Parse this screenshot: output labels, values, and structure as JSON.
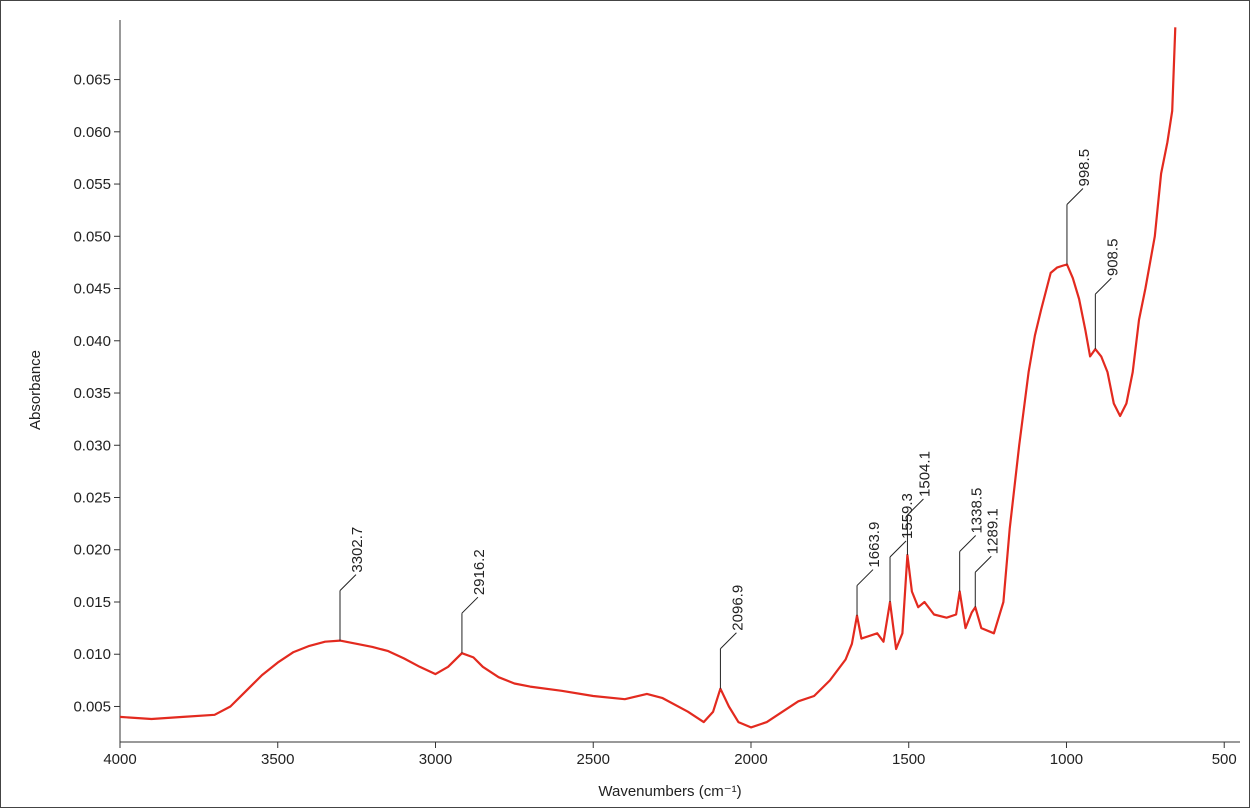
{
  "chart_data": {
    "type": "line",
    "xlabel": "Wavenumbers (cm⁻¹)",
    "ylabel": "Absorbance",
    "color": "#e32a1f",
    "xlim": [
      4000,
      450
    ],
    "ylim": [
      0.0016,
      0.0707
    ],
    "xticks": [
      4000,
      3500,
      3000,
      2500,
      2000,
      1500,
      1000,
      500
    ],
    "yticks": [
      0.005,
      {
        "value": 0.01,
        "label": "0.010"
      },
      0.015,
      {
        "value": 0.02,
        "label": "0.020"
      },
      0.025,
      {
        "value": 0.03,
        "label": "0.030"
      },
      0.035,
      {
        "value": 0.04,
        "label": "0.040"
      },
      0.045,
      {
        "value": 0.05,
        "label": "0.050"
      },
      0.055,
      {
        "value": 0.06,
        "label": "0.060"
      },
      0.065
    ],
    "x": [
      4000,
      3900,
      3800,
      3700,
      3650,
      3600,
      3550,
      3500,
      3450,
      3400,
      3350,
      3302.7,
      3250,
      3200,
      3150,
      3100,
      3050,
      3000,
      2960,
      2916.2,
      2880,
      2850,
      2800,
      2750,
      2700,
      2600,
      2500,
      2400,
      2330,
      2280,
      2200,
      2150,
      2120,
      2096.9,
      2070,
      2040,
      2000,
      1950,
      1900,
      1850,
      1800,
      1750,
      1700,
      1680,
      1663.9,
      1650,
      1600,
      1580,
      1559.3,
      1540,
      1520,
      1504.1,
      1490,
      1470,
      1450,
      1420,
      1380,
      1350,
      1338.5,
      1320,
      1300,
      1289.1,
      1270,
      1230,
      1200,
      1180,
      1150,
      1120,
      1100,
      1080,
      1050,
      1030,
      1010,
      998.5,
      980,
      960,
      940,
      925,
      908.5,
      890,
      870,
      850,
      830,
      810,
      790,
      770,
      750,
      720,
      700,
      680,
      665,
      655
    ],
    "values": [
      0.004,
      0.0038,
      0.004,
      0.0042,
      0.005,
      0.0065,
      0.008,
      0.0092,
      0.0102,
      0.0108,
      0.0112,
      0.0113,
      0.011,
      0.0107,
      0.0103,
      0.0096,
      0.0088,
      0.0081,
      0.0088,
      0.0101,
      0.0097,
      0.0088,
      0.0078,
      0.0072,
      0.0069,
      0.0065,
      0.006,
      0.0057,
      0.0062,
      0.0058,
      0.0045,
      0.0035,
      0.0045,
      0.0067,
      0.005,
      0.0035,
      0.003,
      0.0035,
      0.0045,
      0.0055,
      0.006,
      0.0075,
      0.0095,
      0.011,
      0.0137,
      0.0115,
      0.012,
      0.0112,
      0.015,
      0.0105,
      0.012,
      0.0195,
      0.016,
      0.0145,
      0.015,
      0.0138,
      0.0135,
      0.0138,
      0.016,
      0.0125,
      0.014,
      0.0145,
      0.0125,
      0.012,
      0.015,
      0.022,
      0.03,
      0.037,
      0.0405,
      0.043,
      0.0465,
      0.047,
      0.0472,
      0.0473,
      0.046,
      0.044,
      0.041,
      0.0385,
      0.0392,
      0.0385,
      0.037,
      0.034,
      0.0328,
      0.034,
      0.037,
      0.042,
      0.045,
      0.05,
      0.056,
      0.059,
      0.062,
      0.07
    ],
    "annotations": [
      {
        "x": 3302.7,
        "y": 0.0113
      },
      {
        "x": 2916.2,
        "y": 0.0101
      },
      {
        "x": 2096.9,
        "y": 0.0067
      },
      {
        "x": 1663.9,
        "y": 0.0137
      },
      {
        "x": 1559.3,
        "y": 0.015
      },
      {
        "x": 1504.1,
        "y": 0.0195
      },
      {
        "x": 1338.5,
        "y": 0.016
      },
      {
        "x": 1289.1,
        "y": 0.0145
      },
      {
        "x": 998.5,
        "y": 0.0473
      },
      {
        "x": 908.5,
        "y": 0.0392
      }
    ]
  }
}
